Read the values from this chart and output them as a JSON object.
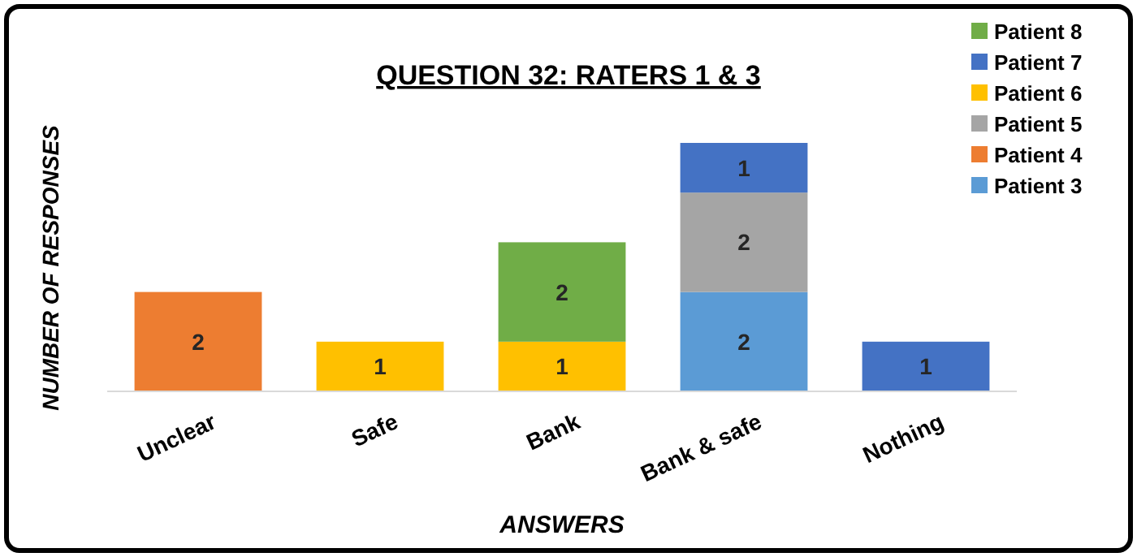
{
  "chart_data": {
    "type": "bar",
    "title": "QUESTION 32: RATERS 1 & 3",
    "xlabel": "ANSWERS",
    "ylabel": "NUMBER OF RESPONSES",
    "categories": [
      "Unclear",
      "Safe",
      "Bank",
      "Bank & safe",
      "Nothing"
    ],
    "stacked": true,
    "data_labels": true,
    "legend": "top right",
    "series": [
      {
        "name": "Patient 3",
        "color": "#5b9bd5",
        "values": [
          null,
          null,
          null,
          2,
          null
        ]
      },
      {
        "name": "Patient 4",
        "color": "#ed7d31",
        "values": [
          2,
          null,
          null,
          null,
          null
        ]
      },
      {
        "name": "Patient 5",
        "color": "#a5a5a5",
        "values": [
          null,
          null,
          null,
          2,
          null
        ]
      },
      {
        "name": "Patient 6",
        "color": "#ffc000",
        "values": [
          null,
          1,
          1,
          null,
          null
        ]
      },
      {
        "name": "Patient 7",
        "color": "#4472c4",
        "values": [
          null,
          null,
          null,
          1,
          1
        ]
      },
      {
        "name": "Patient 8",
        "color": "#70ad47",
        "values": [
          null,
          null,
          2,
          null,
          null
        ]
      }
    ]
  }
}
